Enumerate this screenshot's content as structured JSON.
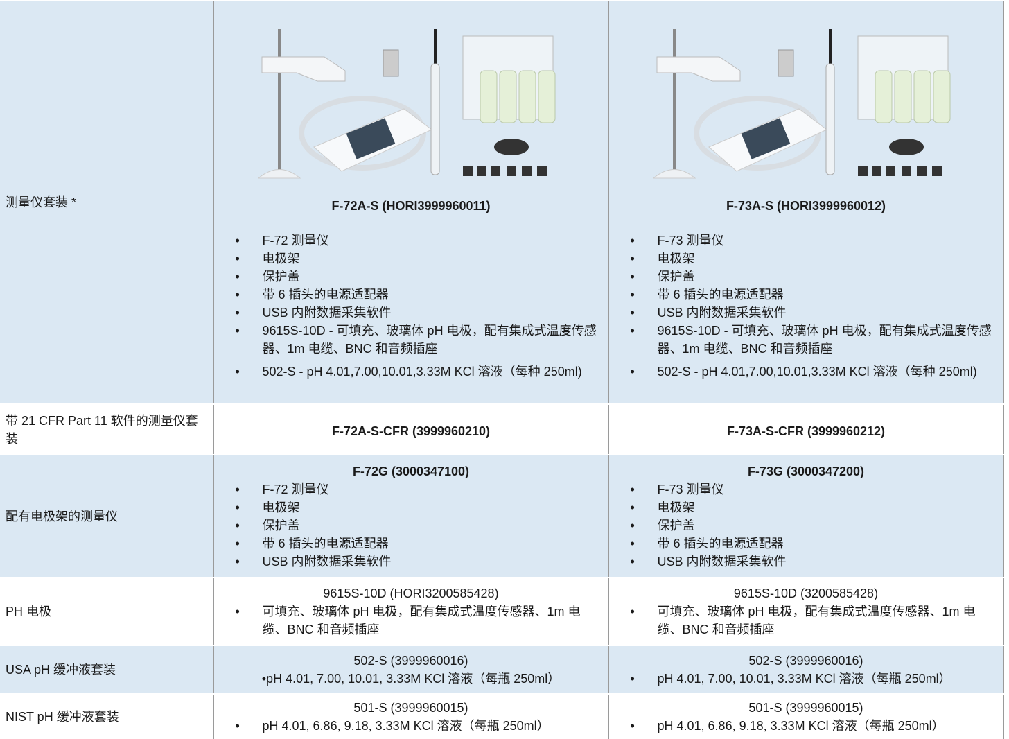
{
  "table": {
    "rows": [
      {
        "label": "测量仪套装 *",
        "cells": [
          {
            "title": "F-72A-S (HORI3999960011)",
            "items": [
              "F-72 测量仪",
              "电极架",
              "保护盖",
              "带 6 插头的电源适配器",
              "USB 内附数据采集软件",
              "9615S-10D - 可填充、玻璃体 pH 电极，配有集成式温度传感器、1m 电缆、BNC 和音频插座",
              "502-S - pH 4.01,7.00,10.01,3.33M KCl 溶液（每种 250ml)"
            ]
          },
          {
            "title": "F-73A-S (HORI3999960012)",
            "items": [
              "F-73 测量仪",
              "电极架",
              "保护盖",
              "带 6 插头的电源适配器",
              "USB 内附数据采集软件",
              "9615S-10D - 可填充、玻璃体 pH 电极，配有集成式温度传感器、1m 电缆、BNC 和音频插座",
              "502-S - pH 4.01,7.00,10.01,3.33M KCl 溶液（每种 250ml)"
            ]
          }
        ]
      },
      {
        "label": "带 21 CFR Part 11 软件的测量仪套装",
        "cells": [
          {
            "title": "F-72A-S-CFR (3999960210)"
          },
          {
            "title": "F-73A-S-CFR (3999960212)"
          }
        ]
      },
      {
        "label": "配有电极架的测量仪",
        "cells": [
          {
            "title": "F-72G (3000347100)",
            "items": [
              "F-72 测量仪",
              "电极架",
              "保护盖",
              "带 6 插头的电源适配器",
              "USB 内附数据采集软件"
            ]
          },
          {
            "title": "F-73G (3000347200)",
            "items": [
              "F-73 测量仪",
              "电极架",
              "保护盖",
              "带 6 插头的电源适配器",
              "USB 内附数据采集软件"
            ]
          }
        ]
      },
      {
        "label": "PH  电极",
        "cells": [
          {
            "heading": "9615S-10D (HORI3200585428)",
            "items": [
              "可填充、玻璃体 pH 电极，配有集成式温度传感器、1m 电缆、BNC 和音频插座"
            ]
          },
          {
            "heading": "9615S-10D (3200585428)",
            "items": [
              "可填充、玻璃体 pH 电极，配有集成式温度传感器、1m 电缆、BNC 和音频插座"
            ]
          }
        ]
      },
      {
        "label": "USA pH 缓冲液套装",
        "cells": [
          {
            "heading": "502-S (3999960016)",
            "text": "•pH 4.01, 7.00, 10.01, 3.33M KCl 溶液（每瓶 250ml）"
          },
          {
            "heading": "502-S (3999960016)",
            "items": [
              "pH 4.01, 7.00, 10.01, 3.33M KCl 溶液（每瓶 250ml）"
            ]
          }
        ]
      },
      {
        "label": "NIST pH 缓冲液套装",
        "cells": [
          {
            "heading": "501-S (3999960015)",
            "items": [
              "pH 4.01, 6.86, 9.18, 3.33M KCl 溶液（每瓶 250ml）"
            ]
          },
          {
            "heading": "501-S (3999960015)",
            "items": [
              "pH 4.01, 6.86, 9.18, 3.33M KCl 溶液（每瓶 250ml）"
            ]
          }
        ]
      }
    ]
  }
}
